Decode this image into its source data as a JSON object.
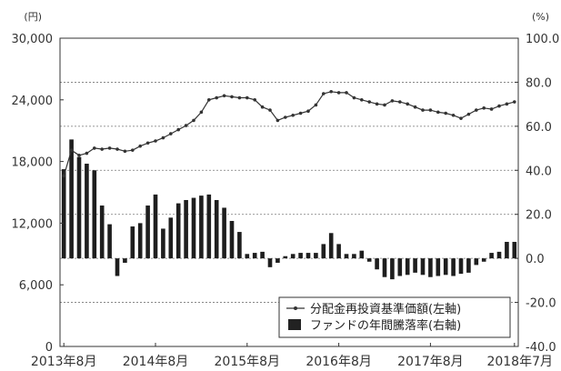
{
  "chart_data": {
    "type": "bar+line",
    "left_unit": "(円)",
    "right_unit": "(%)",
    "left_ylim": [
      0,
      30000
    ],
    "right_ylim": [
      -40.0,
      100.0
    ],
    "left_ticks": [
      "30,000",
      "24,000",
      "18,000",
      "12,000",
      "6,000",
      "0"
    ],
    "left_tick_values": [
      30000,
      24000,
      18000,
      12000,
      6000,
      0
    ],
    "right_ticks": [
      "100.0",
      "80.0",
      "60.0",
      "40.0",
      "20.0",
      "0.0",
      "-20.0",
      "-40.0"
    ],
    "right_tick_values": [
      100,
      80,
      60,
      40,
      20,
      0,
      -20,
      -40
    ],
    "x_labels": [
      "2013年8月",
      "2014年8月",
      "2015年8月",
      "2016年8月",
      "2017年8月",
      "2018年7月"
    ],
    "x_label_index": [
      0,
      12,
      24,
      36,
      48,
      59
    ],
    "grid": "horizontal dashed",
    "legend_position": "bottom-right",
    "series": [
      {
        "name": "分配金再投資基準価額(左軸)",
        "axis": "left",
        "kind": "line",
        "values": [
          16600,
          19100,
          18600,
          18800,
          19300,
          19200,
          19300,
          19200,
          19000,
          19100,
          19500,
          19800,
          20000,
          20300,
          20700,
          21100,
          21500,
          22000,
          22800,
          24000,
          24200,
          24400,
          24300,
          24200,
          24200,
          24000,
          23300,
          23000,
          22000,
          22300,
          22500,
          22700,
          22900,
          23500,
          24600,
          24800,
          24700,
          24700,
          24200,
          24000,
          23800,
          23600,
          23500,
          23900,
          23800,
          23600,
          23300,
          23000,
          23000,
          22800,
          22700,
          22500,
          22200,
          22600,
          23000,
          23200,
          23100,
          23400,
          23600,
          23800
        ]
      },
      {
        "name": "ファンドの年間騰落率(右軸)",
        "axis": "right",
        "kind": "bar",
        "values": [
          40.5,
          54.0,
          46.0,
          43.0,
          40.0,
          24.0,
          15.5,
          -8.0,
          -2.0,
          14.5,
          16.0,
          24.0,
          29.0,
          13.5,
          18.5,
          25.0,
          26.5,
          27.5,
          28.5,
          29.0,
          26.5,
          23.0,
          17.0,
          12.0,
          2.0,
          2.5,
          3.0,
          -4.0,
          -2.0,
          1.0,
          2.0,
          2.5,
          2.5,
          2.5,
          6.5,
          11.5,
          6.5,
          2.0,
          2.0,
          3.5,
          -1.5,
          -5.0,
          -8.5,
          -9.5,
          -8.0,
          -7.5,
          -6.5,
          -7.5,
          -8.5,
          -8.0,
          -7.5,
          -8.0,
          -7.0,
          -6.5,
          -3.0,
          -1.5,
          2.5,
          3.0,
          7.5,
          7.5
        ]
      }
    ]
  }
}
